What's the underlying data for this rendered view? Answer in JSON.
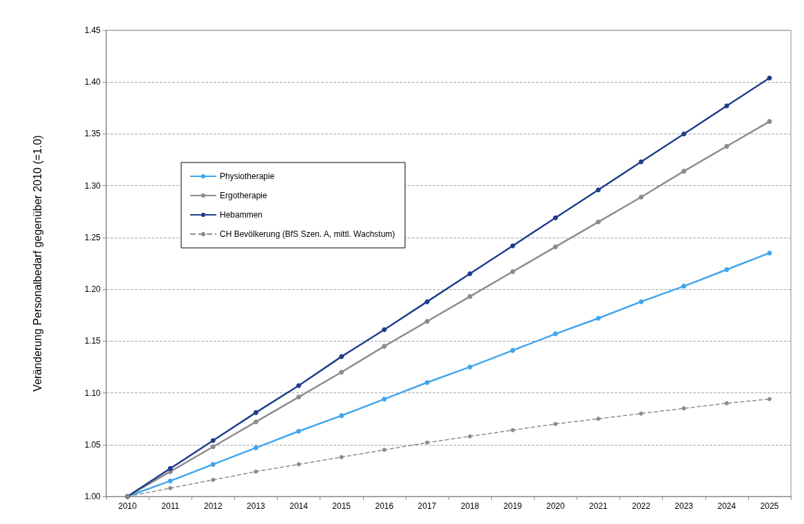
{
  "chart_data": {
    "type": "line",
    "ylabel": "Veränderung Personalbedarf gegenüber 2010 (=1.0)",
    "categories": [
      "2010",
      "2011",
      "2012",
      "2013",
      "2014",
      "2015",
      "2016",
      "2017",
      "2018",
      "2019",
      "2020",
      "2021",
      "2022",
      "2023",
      "2024",
      "2025"
    ],
    "series": [
      {
        "name": "Physiotherapie",
        "color": "#41a5ee",
        "values": [
          1.0,
          1.015,
          1.031,
          1.047,
          1.063,
          1.078,
          1.094,
          1.11,
          1.125,
          1.141,
          1.157,
          1.172,
          1.188,
          1.203,
          1.219,
          1.235
        ]
      },
      {
        "name": "Ergotherapie",
        "color": "#8c8c8c",
        "values": [
          1.0,
          1.024,
          1.048,
          1.072,
          1.096,
          1.12,
          1.145,
          1.169,
          1.193,
          1.217,
          1.241,
          1.265,
          1.289,
          1.314,
          1.338,
          1.362
        ]
      },
      {
        "name": "Hebammen",
        "color": "#1f3d8c",
        "values": [
          1.0,
          1.027,
          1.054,
          1.081,
          1.107,
          1.135,
          1.161,
          1.188,
          1.215,
          1.242,
          1.269,
          1.296,
          1.323,
          1.35,
          1.377,
          1.404
        ]
      },
      {
        "name": "CH Bevölkerung (BfS Szen. A, mittl. Wachstum)",
        "color": "#8c8c8c",
        "line_style": "dashed",
        "values": [
          1.0,
          1.008,
          1.016,
          1.024,
          1.031,
          1.038,
          1.045,
          1.052,
          1.058,
          1.064,
          1.07,
          1.075,
          1.08,
          1.085,
          1.09,
          1.094
        ]
      }
    ],
    "ylim": [
      1.0,
      1.45
    ],
    "yticks": [
      {
        "value": 1.0,
        "label": "1.00"
      },
      {
        "value": 1.05,
        "label": "1.05"
      },
      {
        "value": 1.1,
        "label": "1.10"
      },
      {
        "value": 1.15,
        "label": "1.15"
      },
      {
        "value": 1.2,
        "label": "1.20"
      },
      {
        "value": 1.25,
        "label": "1.25"
      },
      {
        "value": 1.3,
        "label": "1.30"
      },
      {
        "value": 1.35,
        "label": "1.35"
      },
      {
        "value": 1.4,
        "label": "1.40"
      },
      {
        "value": 1.45,
        "label": "1.45"
      }
    ],
    "grid": "y",
    "legend": "top left",
    "marker": "circle",
    "line_style": "solid"
  }
}
